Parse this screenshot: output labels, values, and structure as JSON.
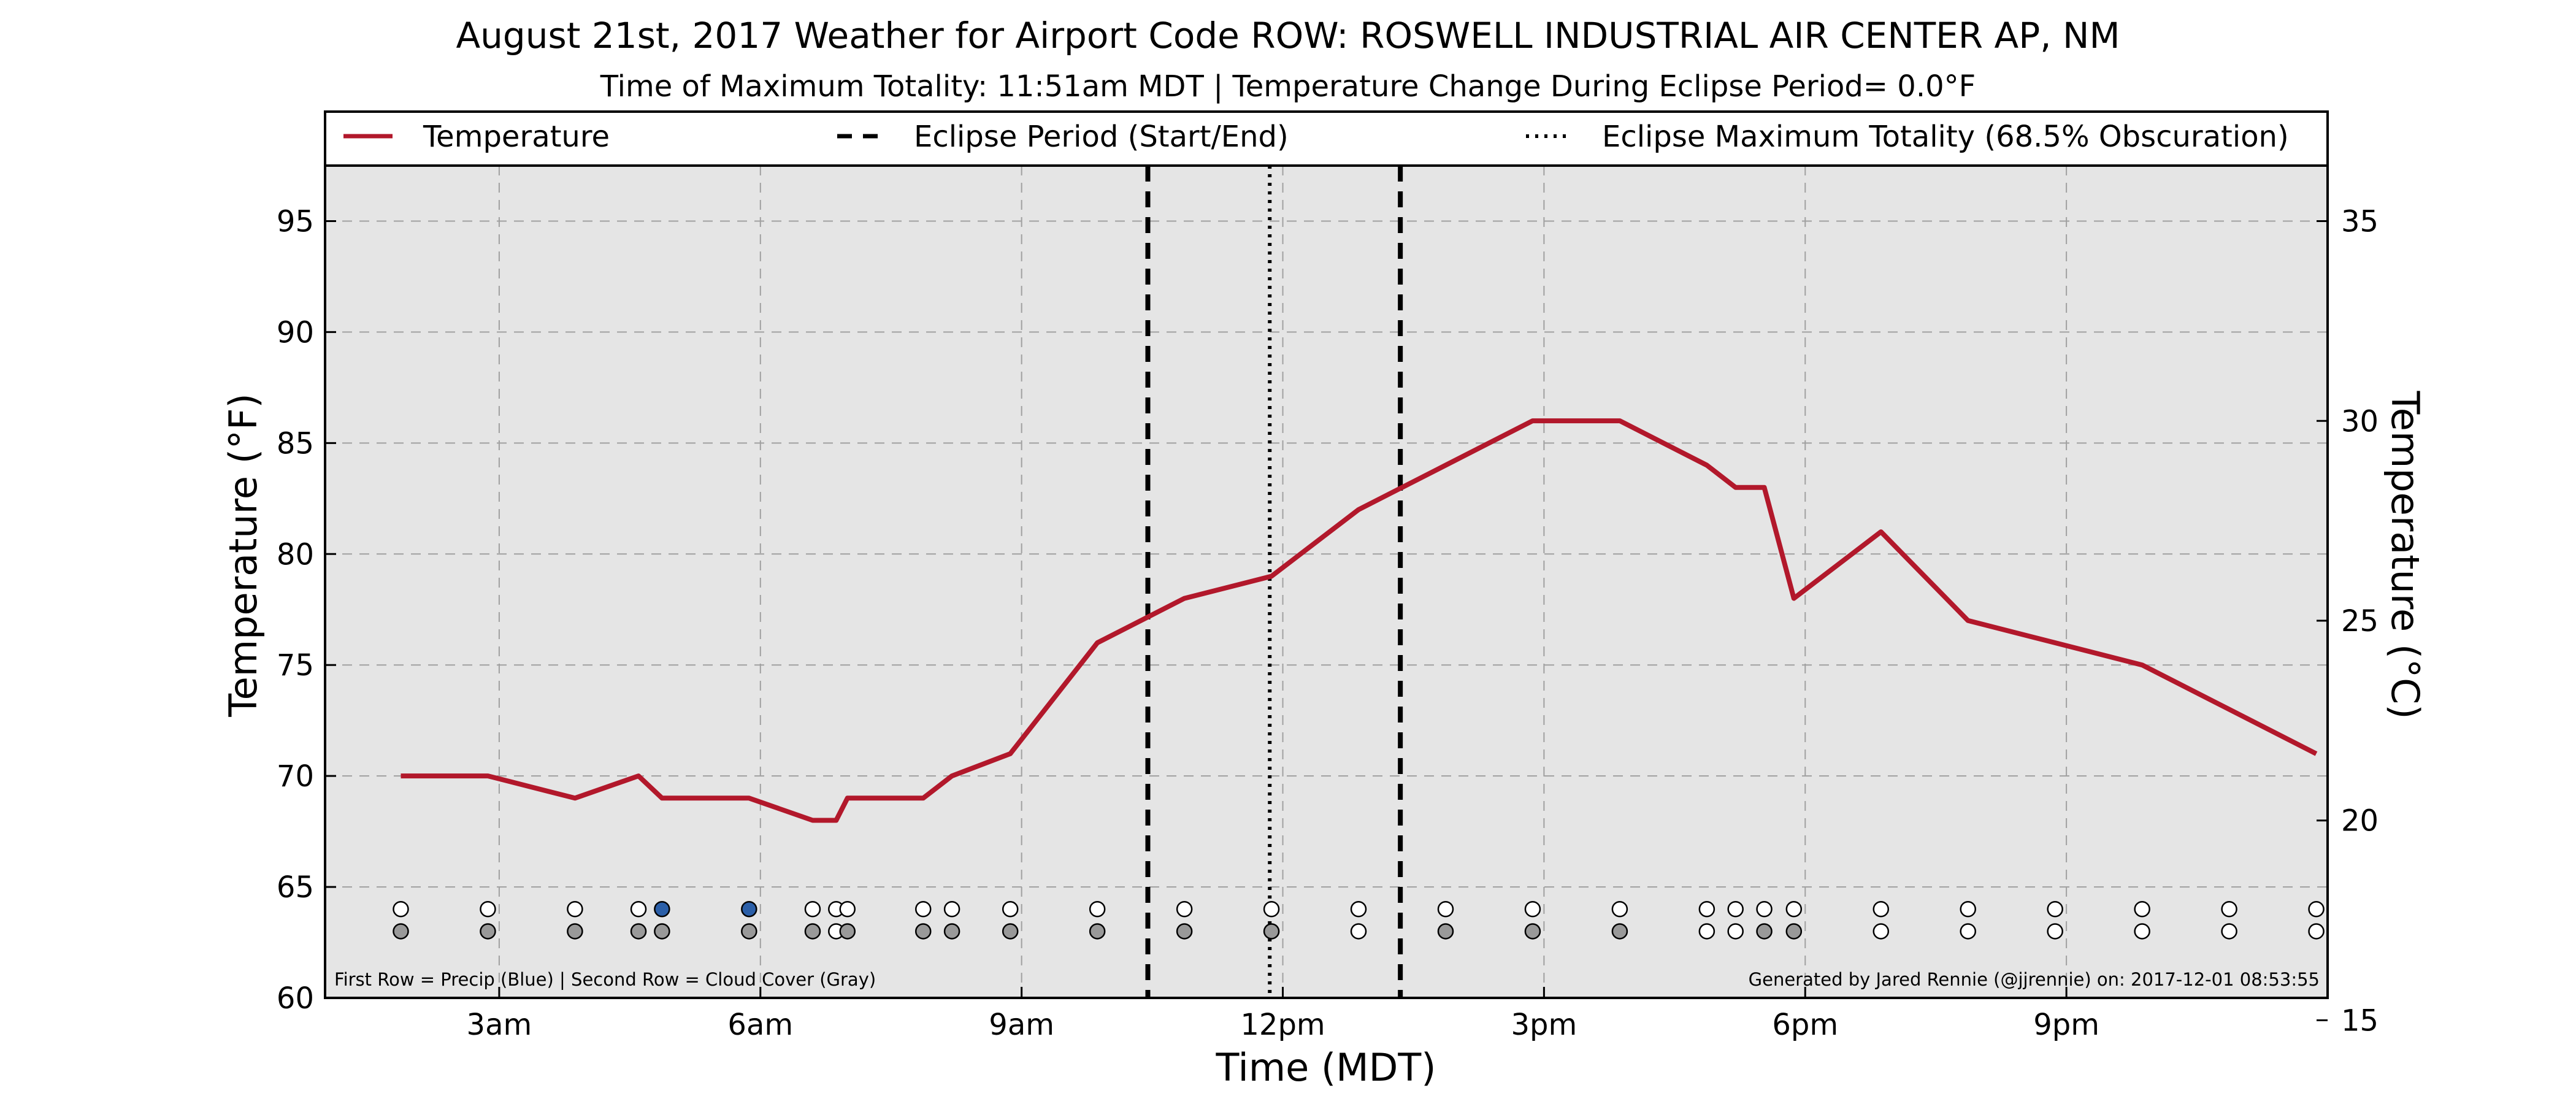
{
  "chart_data": {
    "type": "line",
    "title": "August 21st, 2017 Weather for Airport Code ROW: ROSWELL INDUSTRIAL AIR CENTER AP, NM",
    "subtitle": "Time of Maximum Totality: 11:51am MDT | Temperature Change During Eclipse Period= 0.0°F",
    "xlabel": "Time (MDT)",
    "ylabel": "Temperature (°F)",
    "y2label": "Temperature (°C)",
    "xlim": [
      1.0,
      24.0
    ],
    "ylim": [
      60,
      97.5
    ],
    "y2lim": [
      15.56,
      36.39
    ],
    "x_ticks": [
      {
        "x": 3,
        "label": "3am"
      },
      {
        "x": 6,
        "label": "6am"
      },
      {
        "x": 9,
        "label": "9am"
      },
      {
        "x": 12,
        "label": "12pm"
      },
      {
        "x": 15,
        "label": "3pm"
      },
      {
        "x": 18,
        "label": "6pm"
      },
      {
        "x": 21,
        "label": "9pm"
      }
    ],
    "y_ticks": [
      60,
      65,
      70,
      75,
      80,
      85,
      90,
      95
    ],
    "y2_ticks": [
      15,
      20,
      25,
      30,
      35
    ],
    "grid": true,
    "legend_position": "top",
    "legend": [
      {
        "label": "Temperature",
        "style": "solid"
      },
      {
        "label": "Eclipse Period (Start/End)",
        "style": "dashed"
      },
      {
        "label": "Eclipse Maximum Totality (68.5% Obscuration)",
        "style": "dotted"
      }
    ],
    "series": [
      {
        "name": "Temperature",
        "color": "#b2182b",
        "x": [
          1.87,
          2.87,
          3.87,
          4.6,
          4.87,
          5.87,
          6.6,
          6.87,
          7.0,
          7.87,
          8.2,
          8.87,
          9.87,
          10.87,
          11.87,
          12.87,
          13.87,
          14.87,
          15.87,
          16.87,
          17.2,
          17.53,
          17.87,
          18.87,
          19.87,
          20.87,
          21.87,
          22.87,
          23.87
        ],
        "y": [
          70,
          70,
          69,
          70,
          69,
          69,
          68,
          68,
          69,
          69,
          70,
          71,
          76,
          78,
          79,
          82,
          84,
          86,
          86,
          84,
          83,
          83,
          78,
          81,
          77,
          76,
          75,
          73,
          71
        ]
      }
    ],
    "eclipse_start": 10.45,
    "eclipse_end": 13.35,
    "eclipse_max": 11.85,
    "precip_row": {
      "y": 64,
      "x": [
        1.87,
        2.87,
        3.87,
        4.6,
        4.87,
        5.87,
        6.6,
        6.87,
        7.0,
        7.87,
        8.2,
        8.87,
        9.87,
        10.87,
        11.87,
        12.87,
        13.87,
        14.87,
        15.87,
        16.87,
        17.2,
        17.53,
        17.87,
        18.87,
        19.87,
        20.87,
        21.87,
        22.87,
        23.87
      ],
      "colors": [
        "#ffffff",
        "#ffffff",
        "#ffffff",
        "#ffffff",
        "#2b5fa8",
        "#2b5fa8",
        "#ffffff",
        "#ffffff",
        "#ffffff",
        "#ffffff",
        "#ffffff",
        "#ffffff",
        "#ffffff",
        "#ffffff",
        "#ffffff",
        "#ffffff",
        "#ffffff",
        "#ffffff",
        "#ffffff",
        "#ffffff",
        "#ffffff",
        "#ffffff",
        "#ffffff",
        "#ffffff",
        "#ffffff",
        "#ffffff",
        "#ffffff",
        "#ffffff",
        "#ffffff"
      ]
    },
    "cloud_row": {
      "y": 63,
      "x": [
        1.87,
        2.87,
        3.87,
        4.6,
        4.87,
        5.87,
        6.6,
        6.87,
        7.0,
        7.87,
        8.2,
        8.87,
        9.87,
        10.87,
        11.87,
        12.87,
        13.87,
        14.87,
        15.87,
        16.87,
        17.2,
        17.53,
        17.87,
        18.87,
        19.87,
        20.87,
        21.87,
        22.87,
        23.87
      ],
      "colors": [
        "#999999",
        "#999999",
        "#999999",
        "#999999",
        "#999999",
        "#999999",
        "#999999",
        "#ffffff",
        "#999999",
        "#999999",
        "#999999",
        "#999999",
        "#999999",
        "#999999",
        "#999999",
        "#ffffff",
        "#999999",
        "#999999",
        "#999999",
        "#ffffff",
        "#ffffff",
        "#999999",
        "#999999",
        "#ffffff",
        "#ffffff",
        "#ffffff",
        "#ffffff",
        "#ffffff",
        "#ffffff"
      ]
    },
    "note_left": "First Row = Precip (Blue) | Second Row = Cloud Cover (Gray)",
    "note_right": "Generated by Jared Rennie (@jjrennie) on: 2017-12-01 08:53:55",
    "colors": {
      "plot_background": "#e5e5e5",
      "temperature_line": "#b2182b",
      "grid": "#a0a0a0"
    }
  }
}
